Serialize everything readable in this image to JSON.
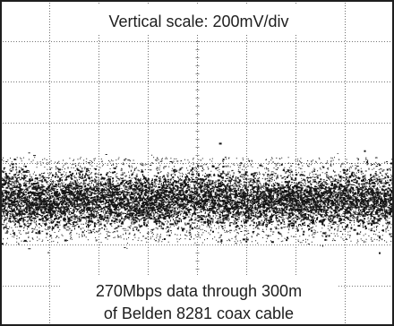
{
  "chart_data": {
    "type": "scatter",
    "title": "Vertical scale: 200mV/div",
    "xlabel": "",
    "ylabel": "",
    "grid": true,
    "grid_divisions": {
      "x": 8,
      "y": 8
    },
    "vertical_scale": "200mV/div",
    "annotations": {
      "scale_label": "Vertical scale: 200mV/div",
      "caption_line1": "270Mbps data through 300m",
      "caption_line2": "of Belden 8281 coax cable"
    },
    "trace": {
      "description_value": "noise band",
      "center_div_from_top": 4.9,
      "dense_half_height_div": 0.55,
      "sparse_half_height_div": 1.05
    }
  },
  "colors": {
    "background": "#ffffff",
    "frame": "#1e1e1e",
    "grid": "#4a4a4a",
    "trace": "#161616",
    "text": "#1e1e1e"
  }
}
